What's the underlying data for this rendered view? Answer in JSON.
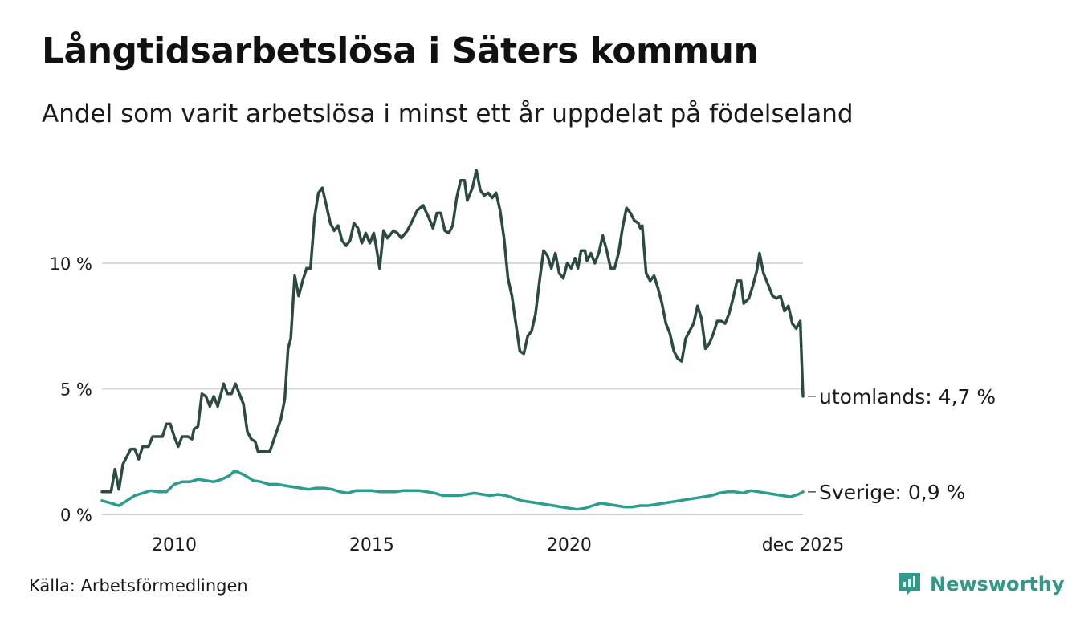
{
  "title": "Långtidsarbetslösa i Säters kommun",
  "subtitle": "Andel som varit arbetslösa i minst ett år uppdelat på födelseland",
  "source": "Källa: Arbetsförmedlingen",
  "brand": {
    "name": "Newsworthy",
    "icon": "newsworthy-logo-icon",
    "color": "#2e9a87"
  },
  "chart_data": {
    "type": "line",
    "title": "Långtidsarbetslösa i Säters kommun",
    "xlabel": "",
    "ylabel": "",
    "xlim": [
      2008.17,
      2025.92
    ],
    "ylim": [
      0,
      15
    ],
    "grid": true,
    "yticks": [
      {
        "value": 0,
        "label": "0 %"
      },
      {
        "value": 5,
        "label": "5 %"
      },
      {
        "value": 10,
        "label": "10 %"
      }
    ],
    "xticks": [
      {
        "value": 2010,
        "label": "2010"
      },
      {
        "value": 2015,
        "label": "2015"
      },
      {
        "value": 2020,
        "label": "2020"
      },
      {
        "value": 2025.92,
        "label": "dec 2025"
      }
    ],
    "series": [
      {
        "name": "utomlands",
        "label": "utomlands: 4,7 %",
        "color": "#2c4a43",
        "points": [
          [
            2008.17,
            0.9
          ],
          [
            2008.4,
            0.9
          ],
          [
            2008.5,
            1.8
          ],
          [
            2008.6,
            1.0
          ],
          [
            2008.7,
            2.0
          ],
          [
            2008.9,
            2.6
          ],
          [
            2009.0,
            2.6
          ],
          [
            2009.1,
            2.2
          ],
          [
            2009.2,
            2.7
          ],
          [
            2009.35,
            2.7
          ],
          [
            2009.45,
            3.1
          ],
          [
            2009.7,
            3.1
          ],
          [
            2009.8,
            3.6
          ],
          [
            2009.9,
            3.6
          ],
          [
            2010.0,
            3.1
          ],
          [
            2010.1,
            2.7
          ],
          [
            2010.2,
            3.1
          ],
          [
            2010.35,
            3.1
          ],
          [
            2010.45,
            3.0
          ],
          [
            2010.5,
            3.4
          ],
          [
            2010.6,
            3.5
          ],
          [
            2010.7,
            4.8
          ],
          [
            2010.8,
            4.7
          ],
          [
            2010.9,
            4.3
          ],
          [
            2011.0,
            4.7
          ],
          [
            2011.1,
            4.3
          ],
          [
            2011.25,
            5.2
          ],
          [
            2011.35,
            4.8
          ],
          [
            2011.45,
            4.8
          ],
          [
            2011.55,
            5.2
          ],
          [
            2011.6,
            5.0
          ],
          [
            2011.75,
            4.4
          ],
          [
            2011.85,
            3.3
          ],
          [
            2011.95,
            3.0
          ],
          [
            2012.05,
            2.9
          ],
          [
            2012.12,
            2.5
          ],
          [
            2012.3,
            2.5
          ],
          [
            2012.42,
            2.5
          ],
          [
            2012.55,
            3.1
          ],
          [
            2012.7,
            3.8
          ],
          [
            2012.8,
            4.6
          ],
          [
            2012.88,
            6.6
          ],
          [
            2012.95,
            7.0
          ],
          [
            2013.05,
            9.5
          ],
          [
            2013.15,
            8.7
          ],
          [
            2013.25,
            9.3
          ],
          [
            2013.35,
            9.8
          ],
          [
            2013.45,
            9.8
          ],
          [
            2013.55,
            11.8
          ],
          [
            2013.65,
            12.8
          ],
          [
            2013.75,
            13.0
          ],
          [
            2013.85,
            12.3
          ],
          [
            2013.95,
            11.6
          ],
          [
            2014.05,
            11.3
          ],
          [
            2014.15,
            11.5
          ],
          [
            2014.25,
            10.9
          ],
          [
            2014.35,
            10.7
          ],
          [
            2014.45,
            10.9
          ],
          [
            2014.55,
            11.6
          ],
          [
            2014.65,
            11.4
          ],
          [
            2014.75,
            10.8
          ],
          [
            2014.85,
            11.2
          ],
          [
            2014.95,
            10.8
          ],
          [
            2015.05,
            11.2
          ],
          [
            2015.1,
            10.8
          ],
          [
            2015.2,
            9.8
          ],
          [
            2015.3,
            11.3
          ],
          [
            2015.4,
            11.0
          ],
          [
            2015.55,
            11.3
          ],
          [
            2015.65,
            11.2
          ],
          [
            2015.75,
            11.0
          ],
          [
            2015.9,
            11.3
          ],
          [
            2016.0,
            11.6
          ],
          [
            2016.15,
            12.1
          ],
          [
            2016.3,
            12.3
          ],
          [
            2016.45,
            11.8
          ],
          [
            2016.55,
            11.4
          ],
          [
            2016.65,
            12.0
          ],
          [
            2016.75,
            12.0
          ],
          [
            2016.85,
            11.3
          ],
          [
            2016.95,
            11.2
          ],
          [
            2017.05,
            11.5
          ],
          [
            2017.15,
            12.6
          ],
          [
            2017.25,
            13.3
          ],
          [
            2017.35,
            13.3
          ],
          [
            2017.42,
            12.5
          ],
          [
            2017.55,
            13.0
          ],
          [
            2017.65,
            13.7
          ],
          [
            2017.75,
            12.9
          ],
          [
            2017.85,
            12.7
          ],
          [
            2017.95,
            12.8
          ],
          [
            2018.05,
            12.6
          ],
          [
            2018.15,
            12.8
          ],
          [
            2018.25,
            12.1
          ],
          [
            2018.35,
            11.0
          ],
          [
            2018.45,
            9.4
          ],
          [
            2018.55,
            8.7
          ],
          [
            2018.65,
            7.6
          ],
          [
            2018.75,
            6.5
          ],
          [
            2018.85,
            6.4
          ],
          [
            2018.95,
            7.1
          ],
          [
            2019.05,
            7.3
          ],
          [
            2019.15,
            8.0
          ],
          [
            2019.25,
            9.3
          ],
          [
            2019.35,
            10.5
          ],
          [
            2019.45,
            10.3
          ],
          [
            2019.55,
            9.8
          ],
          [
            2019.65,
            10.4
          ],
          [
            2019.75,
            9.6
          ],
          [
            2019.85,
            9.4
          ],
          [
            2019.95,
            10.0
          ],
          [
            2020.05,
            9.8
          ],
          [
            2020.15,
            10.2
          ],
          [
            2020.22,
            9.8
          ],
          [
            2020.3,
            10.5
          ],
          [
            2020.4,
            10.5
          ],
          [
            2020.45,
            10.1
          ],
          [
            2020.55,
            10.4
          ],
          [
            2020.65,
            10.0
          ],
          [
            2020.75,
            10.4
          ],
          [
            2020.85,
            11.1
          ],
          [
            2020.95,
            10.5
          ],
          [
            2021.05,
            9.8
          ],
          [
            2021.15,
            9.8
          ],
          [
            2021.25,
            10.4
          ],
          [
            2021.35,
            11.4
          ],
          [
            2021.45,
            12.2
          ],
          [
            2021.55,
            12.0
          ],
          [
            2021.65,
            11.7
          ],
          [
            2021.75,
            11.6
          ],
          [
            2021.8,
            11.4
          ],
          [
            2021.85,
            11.5
          ],
          [
            2021.95,
            9.6
          ],
          [
            2022.05,
            9.3
          ],
          [
            2022.15,
            9.5
          ],
          [
            2022.25,
            9.0
          ],
          [
            2022.35,
            8.4
          ],
          [
            2022.45,
            7.6
          ],
          [
            2022.55,
            7.2
          ],
          [
            2022.65,
            6.5
          ],
          [
            2022.75,
            6.2
          ],
          [
            2022.85,
            6.1
          ],
          [
            2022.95,
            7.0
          ],
          [
            2023.05,
            7.3
          ],
          [
            2023.15,
            7.6
          ],
          [
            2023.25,
            8.3
          ],
          [
            2023.35,
            7.8
          ],
          [
            2023.45,
            6.6
          ],
          [
            2023.55,
            6.8
          ],
          [
            2023.65,
            7.2
          ],
          [
            2023.75,
            7.7
          ],
          [
            2023.85,
            7.7
          ],
          [
            2023.95,
            7.6
          ],
          [
            2024.05,
            8.0
          ],
          [
            2024.15,
            8.6
          ],
          [
            2024.25,
            9.3
          ],
          [
            2024.35,
            9.3
          ],
          [
            2024.42,
            8.4
          ],
          [
            2024.55,
            8.6
          ],
          [
            2024.65,
            9.1
          ],
          [
            2024.75,
            9.7
          ],
          [
            2024.82,
            10.4
          ],
          [
            2024.92,
            9.6
          ],
          [
            2025.05,
            9.1
          ],
          [
            2025.15,
            8.7
          ],
          [
            2025.25,
            8.6
          ],
          [
            2025.35,
            8.7
          ],
          [
            2025.45,
            8.1
          ],
          [
            2025.55,
            8.3
          ],
          [
            2025.65,
            7.6
          ],
          [
            2025.75,
            7.4
          ],
          [
            2025.85,
            7.7
          ],
          [
            2025.92,
            4.7
          ]
        ]
      },
      {
        "name": "Sverige",
        "label": "Sverige: 0,9 %",
        "color": "#2a9d8f",
        "points": [
          [
            2008.17,
            0.55
          ],
          [
            2008.4,
            0.45
          ],
          [
            2008.6,
            0.35
          ],
          [
            2008.8,
            0.55
          ],
          [
            2009.0,
            0.75
          ],
          [
            2009.2,
            0.85
          ],
          [
            2009.4,
            0.95
          ],
          [
            2009.6,
            0.9
          ],
          [
            2009.8,
            0.9
          ],
          [
            2010.0,
            1.2
          ],
          [
            2010.2,
            1.3
          ],
          [
            2010.4,
            1.3
          ],
          [
            2010.6,
            1.4
          ],
          [
            2010.8,
            1.35
          ],
          [
            2011.0,
            1.3
          ],
          [
            2011.2,
            1.4
          ],
          [
            2011.4,
            1.55
          ],
          [
            2011.5,
            1.7
          ],
          [
            2011.6,
            1.7
          ],
          [
            2011.8,
            1.55
          ],
          [
            2012.0,
            1.35
          ],
          [
            2012.2,
            1.3
          ],
          [
            2012.4,
            1.2
          ],
          [
            2012.6,
            1.2
          ],
          [
            2012.8,
            1.15
          ],
          [
            2013.0,
            1.1
          ],
          [
            2013.2,
            1.05
          ],
          [
            2013.4,
            1.0
          ],
          [
            2013.6,
            1.05
          ],
          [
            2013.8,
            1.05
          ],
          [
            2014.0,
            1.0
          ],
          [
            2014.2,
            0.9
          ],
          [
            2014.4,
            0.85
          ],
          [
            2014.6,
            0.95
          ],
          [
            2014.8,
            0.95
          ],
          [
            2015.0,
            0.95
          ],
          [
            2015.2,
            0.9
          ],
          [
            2015.4,
            0.9
          ],
          [
            2015.6,
            0.9
          ],
          [
            2015.8,
            0.95
          ],
          [
            2016.0,
            0.95
          ],
          [
            2016.2,
            0.95
          ],
          [
            2016.4,
            0.9
          ],
          [
            2016.6,
            0.85
          ],
          [
            2016.8,
            0.75
          ],
          [
            2017.0,
            0.75
          ],
          [
            2017.2,
            0.75
          ],
          [
            2017.4,
            0.8
          ],
          [
            2017.6,
            0.85
          ],
          [
            2017.8,
            0.8
          ],
          [
            2018.0,
            0.75
          ],
          [
            2018.2,
            0.8
          ],
          [
            2018.4,
            0.75
          ],
          [
            2018.6,
            0.65
          ],
          [
            2018.8,
            0.55
          ],
          [
            2019.0,
            0.5
          ],
          [
            2019.2,
            0.45
          ],
          [
            2019.4,
            0.4
          ],
          [
            2019.6,
            0.35
          ],
          [
            2019.8,
            0.3
          ],
          [
            2020.0,
            0.25
          ],
          [
            2020.2,
            0.2
          ],
          [
            2020.4,
            0.25
          ],
          [
            2020.6,
            0.35
          ],
          [
            2020.8,
            0.45
          ],
          [
            2021.0,
            0.4
          ],
          [
            2021.2,
            0.35
          ],
          [
            2021.4,
            0.3
          ],
          [
            2021.6,
            0.3
          ],
          [
            2021.8,
            0.35
          ],
          [
            2022.0,
            0.35
          ],
          [
            2022.2,
            0.4
          ],
          [
            2022.4,
            0.45
          ],
          [
            2022.6,
            0.5
          ],
          [
            2022.8,
            0.55
          ],
          [
            2023.0,
            0.6
          ],
          [
            2023.2,
            0.65
          ],
          [
            2023.4,
            0.7
          ],
          [
            2023.6,
            0.75
          ],
          [
            2023.8,
            0.85
          ],
          [
            2024.0,
            0.9
          ],
          [
            2024.2,
            0.9
          ],
          [
            2024.4,
            0.85
          ],
          [
            2024.6,
            0.95
          ],
          [
            2024.8,
            0.9
          ],
          [
            2025.0,
            0.85
          ],
          [
            2025.2,
            0.8
          ],
          [
            2025.4,
            0.75
          ],
          [
            2025.6,
            0.7
          ],
          [
            2025.8,
            0.8
          ],
          [
            2025.92,
            0.9
          ]
        ]
      }
    ]
  }
}
